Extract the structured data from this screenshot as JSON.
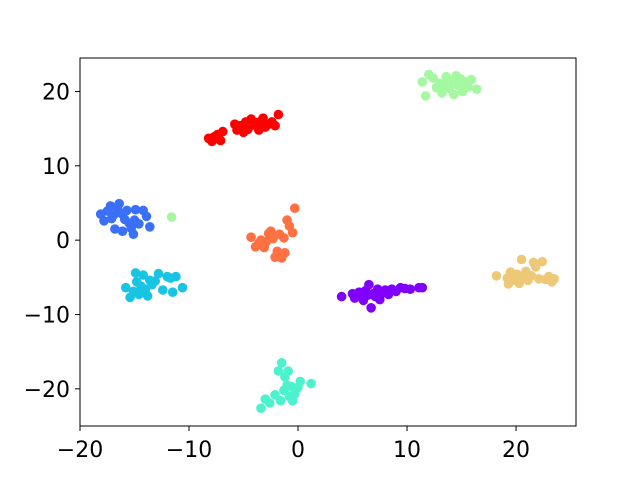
{
  "chart_data": {
    "type": "scatter",
    "title": "",
    "xlabel": "",
    "ylabel": "",
    "xlim": [
      -20,
      25.5
    ],
    "ylim": [
      -25,
      24.5
    ],
    "xticks": [
      -20,
      -10,
      0,
      10,
      20
    ],
    "yticks": [
      -20,
      -10,
      0,
      10,
      20
    ],
    "xtick_labels": [
      "−20",
      "−10",
      "0",
      "10",
      "20"
    ],
    "ytick_labels": [
      "−20",
      "−10",
      "0",
      "10",
      "20"
    ],
    "grid": false,
    "legend": "none",
    "series": [
      {
        "color": "#8000ff",
        "points": [
          [
            4.0,
            -7.6
          ],
          [
            5.0,
            -7.2
          ],
          [
            5.2,
            -7.8
          ],
          [
            5.6,
            -7.0
          ],
          [
            5.8,
            -7.5
          ],
          [
            6.0,
            -8.1
          ],
          [
            6.2,
            -6.8
          ],
          [
            6.4,
            -7.4
          ],
          [
            6.5,
            -6.0
          ],
          [
            6.7,
            -9.1
          ],
          [
            6.9,
            -7.2
          ],
          [
            7.1,
            -7.6
          ],
          [
            7.3,
            -6.6
          ],
          [
            7.5,
            -8.0
          ],
          [
            7.8,
            -7.1
          ],
          [
            8.0,
            -6.7
          ],
          [
            8.3,
            -7.3
          ],
          [
            8.6,
            -6.6
          ],
          [
            9.0,
            -6.9
          ],
          [
            9.4,
            -6.4
          ],
          [
            9.8,
            -6.5
          ],
          [
            10.3,
            -6.6
          ],
          [
            11.1,
            -6.4
          ],
          [
            11.4,
            -6.4
          ]
        ]
      },
      {
        "color": "#3a6ff7",
        "points": [
          [
            -18.1,
            3.5
          ],
          [
            -17.8,
            2.6
          ],
          [
            -17.5,
            3.9
          ],
          [
            -17.2,
            4.6
          ],
          [
            -17.1,
            2.9
          ],
          [
            -16.9,
            3.4
          ],
          [
            -16.8,
            1.5
          ],
          [
            -16.6,
            4.3
          ],
          [
            -16.4,
            4.9
          ],
          [
            -16.2,
            3.6
          ],
          [
            -16.1,
            1.2
          ],
          [
            -15.9,
            2.8
          ],
          [
            -15.7,
            4.0
          ],
          [
            -15.5,
            2.3
          ],
          [
            -15.3,
            1.6
          ],
          [
            -15.1,
            0.8
          ],
          [
            -15.0,
            2.7
          ],
          [
            -14.9,
            4.1
          ],
          [
            -14.6,
            2.2
          ],
          [
            -14.2,
            4.0
          ],
          [
            -13.9,
            3.2
          ],
          [
            -13.6,
            1.8
          ]
        ]
      },
      {
        "color": "#18c4e4",
        "points": [
          [
            -15.8,
            -6.4
          ],
          [
            -15.4,
            -7.7
          ],
          [
            -15.1,
            -6.9
          ],
          [
            -14.9,
            -4.4
          ],
          [
            -14.8,
            -5.6
          ],
          [
            -14.6,
            -7.3
          ],
          [
            -14.4,
            -6.2
          ],
          [
            -14.2,
            -4.7
          ],
          [
            -14.0,
            -6.6
          ],
          [
            -13.8,
            -7.5
          ],
          [
            -13.6,
            -5.4
          ],
          [
            -13.4,
            -6.0
          ],
          [
            -13.1,
            -5.5
          ],
          [
            -12.8,
            -4.5
          ],
          [
            -12.4,
            -6.7
          ],
          [
            -12.0,
            -4.9
          ],
          [
            -11.7,
            -5.1
          ],
          [
            -11.5,
            -7.0
          ],
          [
            -11.2,
            -4.9
          ],
          [
            -10.6,
            -6.4
          ]
        ]
      },
      {
        "color": "#4cf2ce",
        "points": [
          [
            -3.4,
            -22.6
          ],
          [
            -3.0,
            -21.4
          ],
          [
            -2.6,
            -21.9
          ],
          [
            -2.1,
            -20.8
          ],
          [
            -1.8,
            -17.6
          ],
          [
            -1.6,
            -21.6
          ],
          [
            -1.5,
            -16.5
          ],
          [
            -1.3,
            -20.2
          ],
          [
            -1.2,
            -18.4
          ],
          [
            -1.0,
            -19.5
          ],
          [
            -0.9,
            -17.6
          ],
          [
            -0.8,
            -21.0
          ],
          [
            -0.6,
            -19.7
          ],
          [
            -0.5,
            -21.6
          ],
          [
            -0.3,
            -20.7
          ],
          [
            0.0,
            -19.8
          ],
          [
            0.2,
            -19.0
          ],
          [
            1.2,
            -19.3
          ]
        ]
      },
      {
        "color": "#a4f89f",
        "points": [
          [
            -11.6,
            3.1
          ],
          [
            11.4,
            21.3
          ],
          [
            11.7,
            19.4
          ],
          [
            12.0,
            22.3
          ],
          [
            12.4,
            21.8
          ],
          [
            12.7,
            20.5
          ],
          [
            13.0,
            21.1
          ],
          [
            13.2,
            19.8
          ],
          [
            13.4,
            20.9
          ],
          [
            13.6,
            22.0
          ],
          [
            13.9,
            20.4
          ],
          [
            14.1,
            21.5
          ],
          [
            14.3,
            19.6
          ],
          [
            14.5,
            22.1
          ],
          [
            14.7,
            20.8
          ],
          [
            14.9,
            21.7
          ],
          [
            15.1,
            20.0
          ],
          [
            15.3,
            21.3
          ],
          [
            15.6,
            20.6
          ],
          [
            15.9,
            21.6
          ],
          [
            16.4,
            20.3
          ]
        ]
      },
      {
        "color": "#edc977",
        "points": [
          [
            18.2,
            -4.8
          ],
          [
            19.2,
            -5.1
          ],
          [
            19.3,
            -5.9
          ],
          [
            19.5,
            -4.3
          ],
          [
            19.8,
            -5.4
          ],
          [
            20.1,
            -4.6
          ],
          [
            20.3,
            -5.8
          ],
          [
            20.5,
            -2.6
          ],
          [
            20.6,
            -5.0
          ],
          [
            20.9,
            -4.2
          ],
          [
            21.1,
            -5.4
          ],
          [
            21.4,
            -4.8
          ],
          [
            21.6,
            -3.0
          ],
          [
            21.8,
            -3.6
          ],
          [
            22.1,
            -5.2
          ],
          [
            22.4,
            -2.9
          ],
          [
            22.7,
            -5.3
          ],
          [
            23.0,
            -4.9
          ],
          [
            23.3,
            -5.6
          ],
          [
            23.5,
            -5.2
          ]
        ]
      },
      {
        "color": "#ff7043",
        "points": [
          [
            -4.3,
            0.4
          ],
          [
            -3.9,
            -0.9
          ],
          [
            -3.6,
            -0.4
          ],
          [
            -3.4,
            0.0
          ],
          [
            -3.1,
            -1.0
          ],
          [
            -2.9,
            -0.2
          ],
          [
            -2.7,
            0.9
          ],
          [
            -2.5,
            1.2
          ],
          [
            -2.3,
            0.2
          ],
          [
            -2.1,
            -2.3
          ],
          [
            -1.9,
            -1.5
          ],
          [
            -1.7,
            0.8
          ],
          [
            -1.6,
            -1.9
          ],
          [
            -1.5,
            -2.4
          ],
          [
            -1.3,
            0.3
          ],
          [
            -1.2,
            -1.7
          ],
          [
            -1.0,
            2.7
          ],
          [
            -0.8,
            1.9
          ],
          [
            -0.5,
            1.0
          ],
          [
            -0.3,
            4.3
          ]
        ]
      },
      {
        "color": "#ff0000",
        "points": [
          [
            -8.2,
            13.7
          ],
          [
            -7.9,
            13.3
          ],
          [
            -7.7,
            13.9
          ],
          [
            -7.4,
            14.2
          ],
          [
            -7.1,
            13.4
          ],
          [
            -6.9,
            14.6
          ],
          [
            -5.8,
            15.6
          ],
          [
            -5.6,
            14.8
          ],
          [
            -5.3,
            15.4
          ],
          [
            -5.0,
            14.5
          ],
          [
            -4.8,
            15.9
          ],
          [
            -4.6,
            14.9
          ],
          [
            -4.3,
            16.3
          ],
          [
            -4.0,
            15.5
          ],
          [
            -3.8,
            15.8
          ],
          [
            -3.6,
            14.8
          ],
          [
            -3.4,
            16.0
          ],
          [
            -3.2,
            16.4
          ],
          [
            -3.0,
            15.2
          ],
          [
            -2.7,
            15.6
          ],
          [
            -2.4,
            15.9
          ],
          [
            -2.1,
            15.4
          ],
          [
            -1.8,
            16.9
          ]
        ]
      }
    ]
  }
}
